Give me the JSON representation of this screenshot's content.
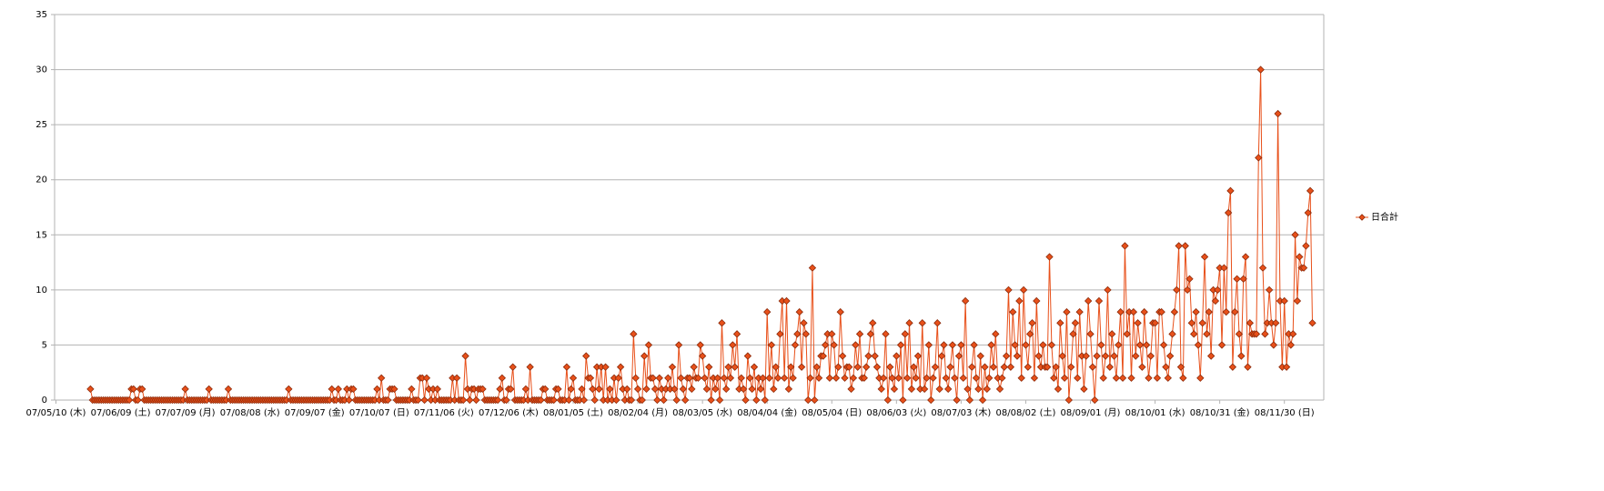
{
  "chart_data": {
    "type": "line",
    "categories": [
      "07/05/10 (木)",
      null,
      null,
      null,
      null,
      null,
      null,
      null,
      null,
      null,
      null,
      null,
      null,
      null,
      null,
      null,
      null,
      null,
      null,
      null,
      null,
      null,
      null,
      null,
      null,
      null,
      null,
      null,
      null,
      null,
      "07/06/09 (土)",
      null,
      null,
      null,
      null,
      null,
      null,
      null,
      null,
      null,
      null,
      null,
      null,
      null,
      null,
      null,
      null,
      null,
      null,
      null,
      null,
      null,
      null,
      null,
      null,
      null,
      null,
      null,
      null,
      null,
      "07/07/09 (月)",
      null,
      null,
      null,
      null,
      null,
      null,
      null,
      null,
      null,
      null,
      null,
      null,
      null,
      null,
      null,
      null,
      null,
      null,
      null,
      null,
      null,
      null,
      null,
      null,
      null,
      null,
      null,
      null,
      null,
      "07/08/08 (水)",
      null,
      null,
      null,
      null,
      null,
      null,
      null,
      null,
      null,
      null,
      null,
      null,
      null,
      null,
      null,
      null,
      null,
      null,
      null,
      null,
      null,
      null,
      null,
      null,
      null,
      null,
      null,
      null,
      null,
      "07/09/07 (金)",
      null,
      null,
      null,
      null,
      null,
      null,
      null,
      null,
      null,
      null,
      null,
      null,
      null,
      null,
      null,
      null,
      null,
      null,
      null,
      null,
      null,
      null,
      null,
      null,
      null,
      null,
      null,
      null,
      null,
      "07/10/07 (日)",
      null,
      null,
      null,
      null,
      null,
      null,
      null,
      null,
      null,
      null,
      null,
      null,
      null,
      null,
      null,
      null,
      null,
      null,
      null,
      null,
      null,
      null,
      null,
      null,
      null,
      null,
      null,
      null,
      null,
      "07/11/06 (火)",
      null,
      null,
      null,
      null,
      null,
      null,
      null,
      null,
      null,
      null,
      null,
      null,
      null,
      null,
      null,
      null,
      null,
      null,
      null,
      null,
      null,
      null,
      null,
      null,
      null,
      null,
      null,
      null,
      null,
      "07/12/06 (木)",
      null,
      null,
      null,
      null,
      null,
      null,
      null,
      null,
      null,
      null,
      null,
      null,
      null,
      null,
      null,
      null,
      null,
      null,
      null,
      null,
      null,
      null,
      null,
      null,
      null,
      null,
      null,
      null,
      null,
      "08/01/05 (土)",
      null,
      null,
      null,
      null,
      null,
      null,
      null,
      null,
      null,
      null,
      null,
      null,
      null,
      null,
      null,
      null,
      null,
      null,
      null,
      null,
      null,
      null,
      null,
      null,
      null,
      null,
      null,
      null,
      null,
      "08/02/04 (月)",
      null,
      null,
      null,
      null,
      null,
      null,
      null,
      null,
      null,
      null,
      null,
      null,
      null,
      null,
      null,
      null,
      null,
      null,
      null,
      null,
      null,
      null,
      null,
      null,
      null,
      null,
      null,
      null,
      null,
      "08/03/05 (水)",
      null,
      null,
      null,
      null,
      null,
      null,
      null,
      null,
      null,
      null,
      null,
      null,
      null,
      null,
      null,
      null,
      null,
      null,
      null,
      null,
      null,
      null,
      null,
      null,
      null,
      null,
      null,
      null,
      null,
      "08/04/04 (金)",
      null,
      null,
      null,
      null,
      null,
      null,
      null,
      null,
      null,
      null,
      null,
      null,
      null,
      null,
      null,
      null,
      null,
      null,
      null,
      null,
      null,
      null,
      null,
      null,
      null,
      null,
      null,
      null,
      null,
      "08/05/04 (日)",
      null,
      null,
      null,
      null,
      null,
      null,
      null,
      null,
      null,
      null,
      null,
      null,
      null,
      null,
      null,
      null,
      null,
      null,
      null,
      null,
      null,
      null,
      null,
      null,
      null,
      null,
      null,
      null,
      null,
      "08/06/03 (火)",
      null,
      null,
      null,
      null,
      null,
      null,
      null,
      null,
      null,
      null,
      null,
      null,
      null,
      null,
      null,
      null,
      null,
      null,
      null,
      null,
      null,
      null,
      null,
      null,
      null,
      null,
      null,
      null,
      null,
      "08/07/03 (木)",
      null,
      null,
      null,
      null,
      null,
      null,
      null,
      null,
      null,
      null,
      null,
      null,
      null,
      null,
      null,
      null,
      null,
      null,
      null,
      null,
      null,
      null,
      null,
      null,
      null,
      null,
      null,
      null,
      null,
      "08/08/02 (土)",
      null,
      null,
      null,
      null,
      null,
      null,
      null,
      null,
      null,
      null,
      null,
      null,
      null,
      null,
      null,
      null,
      null,
      null,
      null,
      null,
      null,
      null,
      null,
      null,
      null,
      null,
      null,
      null,
      null,
      "08/09/01 (月)",
      null,
      null,
      null,
      null,
      null,
      null,
      null,
      null,
      null,
      null,
      null,
      null,
      null,
      null,
      null,
      null,
      null,
      null,
      null,
      null,
      null,
      null,
      null,
      null,
      null,
      null,
      null,
      null,
      null,
      "08/10/01 (水)",
      null,
      null,
      null,
      null,
      null,
      null,
      null,
      null,
      null,
      null,
      null,
      null,
      null,
      null,
      null,
      null,
      null,
      null,
      null,
      null,
      null,
      null,
      null,
      null,
      null,
      null,
      null,
      null,
      null,
      "08/10/31 (金)",
      null,
      null,
      null,
      null,
      null,
      null,
      null,
      null,
      null,
      null,
      null,
      null,
      null,
      null,
      null,
      null,
      null,
      null,
      null,
      null,
      null,
      null,
      null,
      null,
      null,
      null,
      null,
      null,
      null,
      "08/11/30 (日)",
      null,
      null,
      null,
      null,
      null,
      null,
      null,
      null,
      null,
      null,
      null,
      null,
      null
    ],
    "series": [
      {
        "name": "日合計",
        "color": "#e8501a",
        "values": [
          null,
          null,
          null,
          null,
          null,
          null,
          null,
          null,
          null,
          null,
          null,
          null,
          null,
          null,
          null,
          null,
          1,
          0,
          0,
          0,
          0,
          0,
          0,
          0,
          0,
          0,
          0,
          0,
          0,
          0,
          0,
          0,
          0,
          0,
          0,
          1,
          1,
          0,
          0,
          1,
          1,
          0,
          0,
          0,
          0,
          0,
          0,
          0,
          0,
          0,
          0,
          0,
          0,
          0,
          0,
          0,
          0,
          0,
          0,
          0,
          1,
          0,
          0,
          0,
          0,
          0,
          0,
          0,
          0,
          0,
          0,
          1,
          0,
          0,
          0,
          0,
          0,
          0,
          0,
          0,
          1,
          0,
          0,
          0,
          0,
          0,
          0,
          0,
          0,
          0,
          0,
          0,
          0,
          0,
          0,
          0,
          0,
          0,
          0,
          0,
          0,
          0,
          0,
          0,
          0,
          0,
          0,
          0,
          1,
          0,
          0,
          0,
          0,
          0,
          0,
          0,
          0,
          0,
          0,
          0,
          0,
          0,
          0,
          0,
          0,
          0,
          0,
          0,
          1,
          0,
          0,
          1,
          0,
          0,
          0,
          1,
          0,
          1,
          1,
          0,
          0,
          0,
          0,
          0,
          0,
          0,
          0,
          0,
          0,
          1,
          0,
          2,
          0,
          0,
          0,
          1,
          1,
          1,
          0,
          0,
          0,
          0,
          0,
          0,
          0,
          1,
          0,
          0,
          0,
          2,
          2,
          0,
          2,
          1,
          0,
          1,
          0,
          1,
          0,
          0,
          0,
          0,
          0,
          0,
          2,
          0,
          2,
          0,
          0,
          0,
          4,
          1,
          0,
          1,
          1,
          0,
          1,
          1,
          1,
          0,
          0,
          0,
          0,
          0,
          0,
          0,
          1,
          2,
          0,
          0,
          1,
          1,
          3,
          0,
          0,
          0,
          0,
          0,
          1,
          0,
          3,
          0,
          0,
          0,
          0,
          0,
          1,
          1,
          0,
          0,
          0,
          0,
          1,
          1,
          0,
          0,
          0,
          3,
          0,
          1,
          2,
          0,
          0,
          0,
          1,
          0,
          4,
          2,
          2,
          1,
          0,
          3,
          1,
          3,
          0,
          3,
          0,
          1,
          0,
          2,
          0,
          2,
          3,
          1,
          0,
          1,
          0,
          0,
          6,
          2,
          1,
          0,
          0,
          4,
          1,
          5,
          2,
          2,
          1,
          0,
          2,
          1,
          0,
          1,
          2,
          1,
          3,
          1,
          0,
          5,
          2,
          1,
          0,
          2,
          2,
          1,
          3,
          2,
          2,
          5,
          4,
          2,
          1,
          3,
          0,
          2,
          1,
          2,
          0,
          7,
          2,
          1,
          3,
          2,
          5,
          3,
          6,
          1,
          2,
          1,
          0,
          4,
          2,
          1,
          3,
          0,
          2,
          1,
          2,
          0,
          8,
          2,
          5,
          1,
          3,
          2,
          6,
          9,
          2,
          9,
          1,
          3,
          2,
          5,
          6,
          8,
          3,
          7,
          6,
          0,
          2,
          12,
          0,
          3,
          2,
          4,
          4,
          5,
          6,
          2,
          6,
          5,
          2,
          3,
          8,
          4,
          2,
          3,
          3,
          1,
          2,
          5,
          3,
          6,
          2,
          2,
          3,
          4,
          6,
          7,
          4,
          3,
          2,
          1,
          2,
          6,
          0,
          3,
          2,
          1,
          4,
          2,
          5,
          0,
          6,
          2,
          7,
          1,
          3,
          2,
          4,
          1,
          7,
          1,
          2,
          5,
          0,
          2,
          3,
          7,
          1,
          4,
          5,
          2,
          1,
          3,
          5,
          2,
          0,
          4,
          5,
          2,
          9,
          1,
          0,
          3,
          5,
          2,
          1,
          4,
          0,
          3,
          1,
          2,
          5,
          3,
          6,
          2,
          1,
          2,
          3,
          4,
          10,
          3,
          8,
          5,
          4,
          9,
          2,
          10,
          5,
          3,
          6,
          7,
          2,
          9,
          4,
          3,
          5,
          3,
          3,
          13,
          5,
          2,
          3,
          1,
          7,
          4,
          2,
          8,
          0,
          3,
          6,
          7,
          2,
          8,
          4,
          1,
          4,
          9,
          6,
          3,
          0,
          4,
          9,
          5,
          2,
          4,
          10,
          3,
          6,
          4,
          2,
          5,
          8,
          2,
          14,
          6,
          8,
          2,
          8,
          4,
          7,
          5,
          3,
          8,
          5,
          2,
          4,
          7,
          7,
          2,
          8,
          8,
          5,
          3,
          2,
          4,
          6,
          8,
          10,
          14,
          3,
          2,
          14,
          10,
          11,
          7,
          6,
          8,
          5,
          2,
          7,
          13,
          6,
          8,
          4,
          10,
          9,
          10,
          12,
          5,
          12,
          8,
          17,
          19,
          3,
          8,
          11,
          6,
          4,
          11,
          13,
          3,
          7,
          6,
          6,
          6,
          22,
          30,
          12,
          6,
          7,
          10,
          7,
          5,
          7,
          26,
          9,
          3,
          9,
          3,
          6,
          5,
          6,
          15,
          9,
          13,
          12,
          12,
          14,
          17,
          19,
          7
        ]
      }
    ],
    "ylim": [
      0,
      35
    ],
    "yticks": [
      0,
      5,
      10,
      15,
      20,
      25,
      30,
      35
    ],
    "grid": true,
    "legend": "right"
  }
}
